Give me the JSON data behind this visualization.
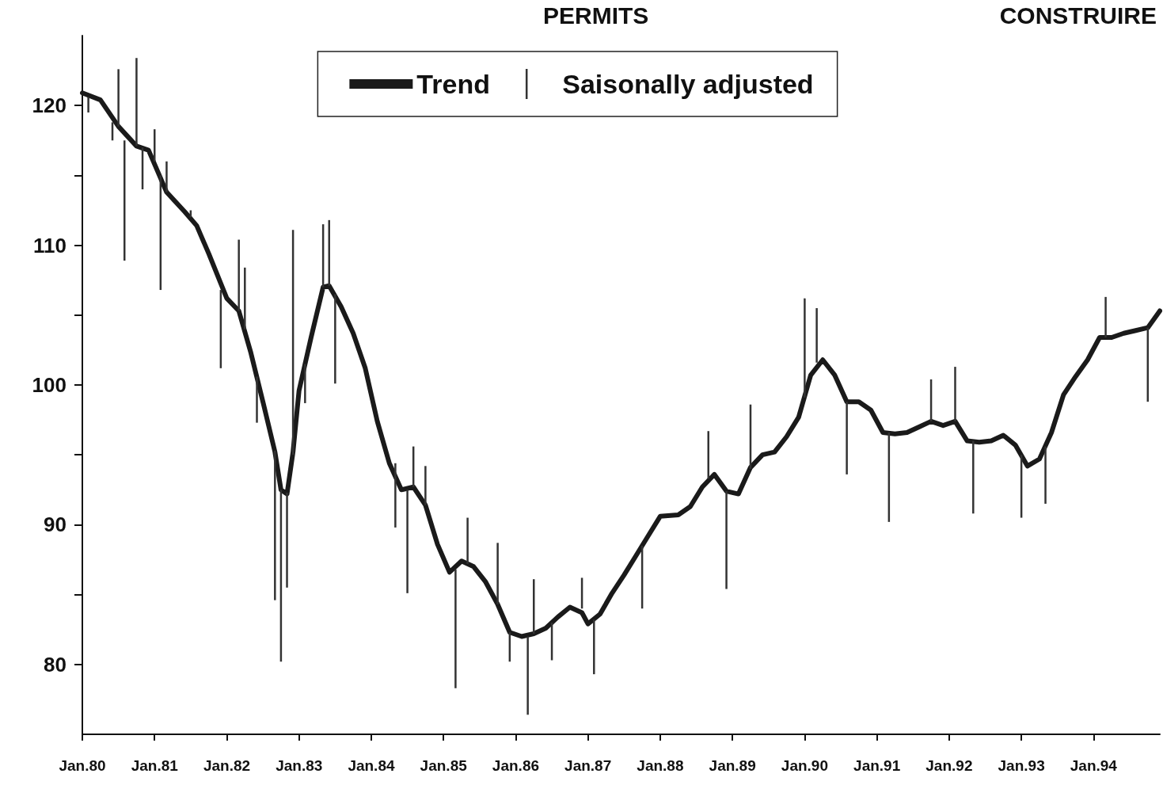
{
  "chart_data": {
    "type": "line",
    "annotations": [
      "PERMITS",
      "CONSTRUIRE"
    ],
    "xlim": [
      "1980-01",
      "1994-12"
    ],
    "xticks": [
      {
        "value": "1980-01",
        "label": "Jan.80"
      },
      {
        "value": "1981-01",
        "label": "Jan.81"
      },
      {
        "value": "1982-01",
        "label": "Jan.82"
      },
      {
        "value": "1983-01",
        "label": "Jan.83"
      },
      {
        "value": "1984-01",
        "label": "Jan.84"
      },
      {
        "value": "1985-01",
        "label": "Jan.85"
      },
      {
        "value": "1986-01",
        "label": "Jan.86"
      },
      {
        "value": "1987-01",
        "label": "Jan.87"
      },
      {
        "value": "1988-01",
        "label": "Jan.88"
      },
      {
        "value": "1989-01",
        "label": "Jan.89"
      },
      {
        "value": "1990-01",
        "label": "Jan.90"
      },
      {
        "value": "1991-01",
        "label": "Jan.91"
      },
      {
        "value": "1992-01",
        "label": "Jan.92"
      },
      {
        "value": "1993-01",
        "label": "Jan.93"
      },
      {
        "value": "1994-01",
        "label": "Jan.94"
      }
    ],
    "ylim": [
      75,
      125
    ],
    "yticks": [
      80,
      {
        "value": 85,
        "label": null
      },
      90,
      {
        "value": 95,
        "label": null
      },
      100,
      {
        "value": 105,
        "label": null
      },
      110,
      {
        "value": 115,
        "label": null
      },
      120
    ],
    "grid": false,
    "legend": "top",
    "marker": "none",
    "line_style": "solid",
    "series": [
      {
        "name": "Trend",
        "color": "#1a1a1a",
        "x": [
          "1980-01",
          "1980-04",
          "1980-07",
          "1980-10",
          "1980-12",
          "1981-03",
          "1981-06",
          "1981-08",
          "1981-10",
          "1982-01",
          "1982-03",
          "1982-05",
          "1982-07",
          "1982-09",
          "1982-10",
          "1982-11",
          "1982-12",
          "1983-01",
          "1983-03",
          "1983-05",
          "1983-06",
          "1983-08",
          "1983-10",
          "1983-12",
          "1984-02",
          "1984-04",
          "1984-06",
          "1984-08",
          "1984-10",
          "1984-12",
          "1985-02",
          "1985-04",
          "1985-06",
          "1985-08",
          "1985-10",
          "1985-12",
          "1986-02",
          "1986-04",
          "1986-06",
          "1986-08",
          "1986-10",
          "1986-12",
          "1987-01",
          "1987-03",
          "1987-05",
          "1987-07",
          "1987-09",
          "1987-11",
          "1988-01",
          "1988-04",
          "1988-06",
          "1988-08",
          "1988-10",
          "1988-12",
          "1989-02",
          "1989-04",
          "1989-06",
          "1989-08",
          "1989-10",
          "1989-12",
          "1990-02",
          "1990-04",
          "1990-06",
          "1990-08",
          "1990-10",
          "1990-12",
          "1991-02",
          "1991-04",
          "1991-06",
          "1991-08",
          "1991-10",
          "1991-12",
          "1992-02",
          "1992-04",
          "1992-06",
          "1992-08",
          "1992-10",
          "1992-12",
          "1993-02",
          "1993-04",
          "1993-06",
          "1993-08",
          "1993-10",
          "1993-12",
          "1994-02",
          "1994-04",
          "1994-06",
          "1994-08",
          "1994-10",
          "1994-12"
        ],
        "values": [
          120.9,
          120.4,
          118.5,
          117.1,
          116.8,
          113.8,
          112.4,
          111.4,
          109.4,
          106.2,
          105.3,
          102.3,
          98.8,
          95.2,
          92.5,
          92.2,
          95.2,
          99.6,
          103.4,
          107.0,
          107.1,
          105.6,
          103.7,
          101.2,
          97.4,
          94.4,
          92.5,
          92.7,
          91.4,
          88.6,
          86.6,
          87.4,
          87.0,
          85.9,
          84.3,
          82.3,
          82.0,
          82.2,
          82.6,
          83.4,
          84.1,
          83.7,
          82.9,
          83.6,
          85.1,
          86.4,
          87.8,
          89.2,
          90.6,
          90.7,
          91.3,
          92.7,
          93.6,
          92.4,
          92.2,
          94.1,
          95.0,
          95.2,
          96.3,
          97.7,
          100.7,
          101.8,
          100.7,
          98.8,
          98.8,
          98.2,
          96.6,
          96.5,
          96.6,
          97.0,
          97.4,
          97.1,
          97.4,
          96.0,
          95.9,
          96.0,
          96.4,
          95.7,
          94.2,
          94.7,
          96.6,
          99.3,
          100.6,
          101.8,
          103.4,
          103.4,
          103.7,
          103.9,
          104.1,
          105.3
        ]
      },
      {
        "name": "Saisonally adjusted",
        "type": "bar",
        "color": "#333333",
        "x": [
          "1980-02",
          "1980-06",
          "1980-07",
          "1980-08",
          "1980-10",
          "1980-11",
          "1981-01",
          "1981-02",
          "1981-03",
          "1981-07",
          "1981-12",
          "1982-03",
          "1982-04",
          "1982-06",
          "1982-09",
          "1982-10",
          "1982-11",
          "1982-12",
          "1983-02",
          "1983-05",
          "1983-06",
          "1983-07",
          "1984-05",
          "1984-07",
          "1984-08",
          "1984-10",
          "1985-03",
          "1985-05",
          "1985-10",
          "1985-12",
          "1986-03",
          "1986-04",
          "1986-07",
          "1986-12",
          "1987-02",
          "1987-10",
          "1988-09",
          "1988-12",
          "1989-04",
          "1990-01",
          "1990-03",
          "1990-08",
          "1991-03",
          "1991-10",
          "1992-02",
          "1992-05",
          "1993-01",
          "1993-05",
          "1994-03",
          "1994-10"
        ],
        "base": [
          119.5,
          117.5,
          118.5,
          108.9,
          117.1,
          114.0,
          116.0,
          106.8,
          113.8,
          112.0,
          101.2,
          105.3,
          104.0,
          97.3,
          84.6,
          80.2,
          85.5,
          95.0,
          98.7,
          107.0,
          107.1,
          100.1,
          89.8,
          85.1,
          92.7,
          91.4,
          78.3,
          87.2,
          84.3,
          80.2,
          76.4,
          82.2,
          80.3,
          84.0,
          79.3,
          84.0,
          93.3,
          85.4,
          94.0,
          99.1,
          101.6,
          93.6,
          90.2,
          97.4,
          97.4,
          90.8,
          90.5,
          91.5,
          103.4,
          98.8
        ],
        "values": [
          1.1,
          1.3,
          4.1,
          8.6,
          6.3,
          3.0,
          2.3,
          8.2,
          2.2,
          0.5,
          5.6,
          5.1,
          4.4,
          3.3,
          10.7,
          12.3,
          6.8,
          16.1,
          2.8,
          4.5,
          4.7,
          6.4,
          4.6,
          7.4,
          2.9,
          2.8,
          8.5,
          3.3,
          4.4,
          2.1,
          5.6,
          3.9,
          2.7,
          2.2,
          3.9,
          4.5,
          3.4,
          7.0,
          4.6,
          7.1,
          3.9,
          5.2,
          6.4,
          3.0,
          3.9,
          5.2,
          4.5,
          4.1,
          2.9,
          5.3
        ]
      }
    ]
  }
}
